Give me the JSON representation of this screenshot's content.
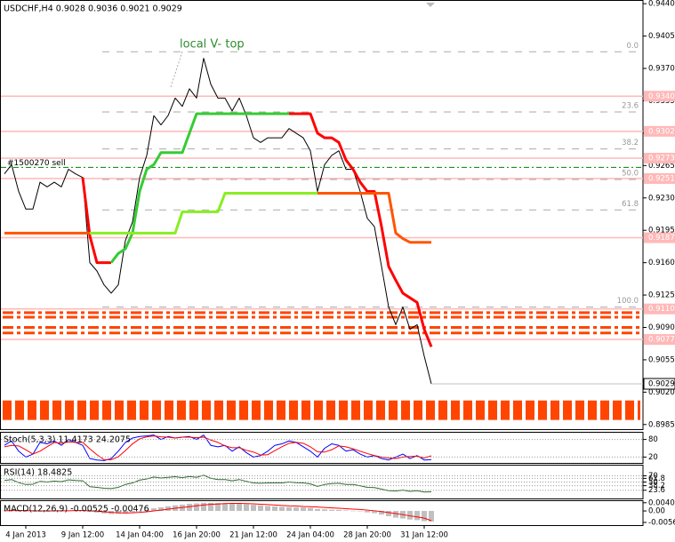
{
  "chart_data": [
    {
      "type": "line",
      "title": "USDCHF,H4  0.9028 0.9036 0.9021 0.9029",
      "categories": [
        null,
        null,
        null,
        "4 Jan 2013",
        null,
        null,
        null,
        null,
        null,
        null,
        null,
        "9 Jan 12:00",
        null,
        null,
        null,
        null,
        null,
        null,
        null,
        "14 Jan 04:00",
        null,
        null,
        null,
        null,
        null,
        null,
        null,
        "16 Jan 20:00",
        null,
        null,
        null,
        null,
        null,
        null,
        null,
        "21 Jan 12:00",
        null,
        null,
        null,
        null,
        null,
        null,
        null,
        "24 Jan 04:00",
        null,
        null,
        null,
        null,
        null,
        null,
        null,
        "28 Jan 20:00",
        null,
        null,
        null,
        null,
        null,
        null,
        null,
        "31 Jan 12:00",
        null
      ],
      "ylim": [
        0.898,
        0.9444
      ],
      "yticks": [
        {
          "value": 0.944,
          "label": "0.9440"
        },
        0.9405,
        {
          "value": 0.937,
          "label": "0.9370"
        },
        0.9335,
        {
          "value": 0.93,
          "label": "0.9300"
        },
        0.9265,
        {
          "value": 0.923,
          "label": "0.9230"
        },
        0.9195,
        {
          "value": 0.916,
          "label": "0.9160"
        },
        0.9125,
        {
          "value": 0.909,
          "label": "0.9090"
        },
        0.9055,
        {
          "value": 0.902,
          "label": "0.9020"
        },
        0.8985
      ],
      "series": [
        {
          "color": "#000000",
          "width": 1,
          "values": [
            0.9256,
            0.9266,
            0.9237,
            0.9218,
            0.9218,
            0.9247,
            0.9242,
            0.9247,
            0.9242,
            0.9261,
            0.9256,
            0.9252,
            0.916,
            0.9151,
            0.9136,
            0.9127,
            0.9136,
            0.9184,
            0.9204,
            0.9252,
            0.9276,
            0.9319,
            0.9309,
            0.9319,
            0.9338,
            0.9329,
            0.9348,
            0.9338,
            0.9381,
            0.9353,
            0.9338,
            0.9338,
            0.9324,
            0.9338,
            0.9319,
            0.9295,
            0.929,
            0.9295,
            0.9295,
            0.9295,
            0.9305,
            0.93,
            0.9295,
            0.9281,
            0.9237,
            0.9266,
            0.9276,
            0.9281,
            0.9261,
            0.9261,
            0.9237,
            0.9208,
            0.9199,
            0.9156,
            0.9112,
            0.9093,
            0.9112,
            0.9088,
            0.9093,
            0.9059,
            0.9029
          ]
        },
        {
          "color": "#ff0000",
          "width": 3,
          "values": [
            null,
            null,
            null,
            null,
            null,
            null,
            null,
            null,
            null,
            null,
            null,
            0.9252,
            0.9189,
            0.916,
            0.916,
            0.916,
            null,
            null,
            null,
            null,
            null,
            null,
            null,
            null,
            null,
            null,
            null,
            null,
            null,
            null,
            null,
            null,
            null,
            null,
            null,
            null,
            null,
            null,
            null,
            null,
            0.9321,
            0.9321,
            0.9321,
            0.9321,
            0.93,
            0.9295,
            0.9295,
            0.929,
            0.9271,
            0.9261,
            0.9247,
            0.9237,
            0.9237,
            0.9199,
            0.9156,
            0.9141,
            0.9127,
            0.9122,
            0.9117,
            0.9088,
            0.9069
          ]
        },
        {
          "color": "#33cc33",
          "width": 3,
          "values": [
            null,
            null,
            null,
            null,
            null,
            null,
            null,
            null,
            null,
            null,
            null,
            null,
            null,
            null,
            null,
            0.916,
            0.917,
            0.9175,
            0.9192,
            0.9237,
            0.9261,
            0.9266,
            0.9279,
            0.9279,
            0.9279,
            0.9279,
            0.93,
            0.9321,
            0.9321,
            0.9321,
            0.9321,
            0.9321,
            0.9321,
            0.9321,
            0.9321,
            0.9321,
            0.9321,
            0.9321,
            0.9321,
            0.9321,
            0.9321,
            null,
            null,
            null,
            null,
            null,
            null,
            null,
            null,
            null,
            null,
            null,
            null,
            null,
            null,
            null,
            null,
            null,
            null,
            null,
            null
          ]
        },
        {
          "color": "#88ee22",
          "width": 3,
          "values": [
            null,
            null,
            null,
            null,
            null,
            null,
            null,
            null,
            null,
            null,
            null,
            null,
            0.9192,
            0.9192,
            0.9192,
            0.9192,
            0.9192,
            0.9192,
            0.9192,
            0.9192,
            0.9192,
            0.9192,
            0.9192,
            0.9192,
            0.9192,
            0.9215,
            0.9215,
            0.9215,
            0.9215,
            0.9215,
            0.9215,
            0.9235,
            0.9235,
            0.9235,
            0.9235,
            0.9235,
            0.9235,
            0.9235,
            0.9235,
            0.9235,
            0.9235,
            0.9235,
            0.9235,
            0.9235,
            0.9235,
            null,
            null,
            null,
            null,
            null,
            null,
            null,
            null,
            null,
            null,
            null,
            null,
            null,
            null,
            null,
            null
          ]
        },
        {
          "color": "#ff5500",
          "width": 3,
          "values": [
            0.9192,
            0.9192,
            0.9192,
            0.9192,
            0.9192,
            0.9192,
            0.9192,
            0.9192,
            0.9192,
            0.9192,
            0.9192,
            0.9192,
            0.9192,
            null,
            null,
            null,
            null,
            null,
            null,
            null,
            null,
            null,
            null,
            null,
            null,
            null,
            null,
            null,
            null,
            null,
            null,
            null,
            null,
            null,
            null,
            null,
            null,
            null,
            null,
            null,
            null,
            null,
            null,
            null,
            0.9235,
            0.9235,
            0.9235,
            0.9235,
            0.9235,
            0.9235,
            0.9235,
            0.9235,
            0.9235,
            0.9235,
            0.9235,
            0.9192,
            0.9186,
            0.9182,
            0.9182,
            0.9182,
            0.9182
          ]
        }
      ],
      "levels": [
        {
          "value": 0.934,
          "label": "0.9340"
        },
        0.9302,
        0.9273,
        0.9251,
        0.9187,
        {
          "value": 0.911,
          "label": "0.9110"
        },
        0.9077
      ],
      "level_color": "#ffb8b8",
      "last": 0.9029,
      "fib_levels": [
        {
          "value": 0.9388,
          "label": "0.0"
        },
        {
          "value": 0.9323,
          "label": "23.6"
        },
        {
          "value": 0.9283,
          "label": "38.2"
        },
        {
          "value": 0.925,
          "label": "50.0"
        },
        {
          "value": 0.9217,
          "label": "61.8"
        },
        {
          "value": 0.9112,
          "label": "100.0"
        }
      ],
      "order": {
        "label": "#1500270 sell",
        "value": 0.9263,
        "color": "#008000"
      },
      "zone_lines": [
        0.9106,
        0.9101,
        0.909,
        0.9084
      ],
      "band": [
        0.9011,
        0.899
      ],
      "zone_color": "#ff4500",
      "annotation": "local V- top"
    },
    {
      "type": "line",
      "title": "Stoch(5,3,3) 11.4173 24.2075",
      "ylim": [
        0,
        100
      ],
      "yticks": [
        80,
        20
      ],
      "series": [
        {
          "color": "#0000ff",
          "width": 1,
          "values": [
            60,
            75,
            40,
            20,
            30,
            70,
            65,
            75,
            60,
            80,
            70,
            60,
            15,
            10,
            8,
            15,
            40,
            70,
            85,
            90,
            92,
            95,
            80,
            90,
            85,
            88,
            90,
            80,
            95,
            60,
            55,
            60,
            40,
            55,
            35,
            20,
            25,
            40,
            60,
            65,
            75,
            70,
            55,
            40,
            20,
            50,
            65,
            60,
            40,
            45,
            30,
            20,
            25,
            15,
            10,
            20,
            30,
            15,
            25,
            10,
            11.4173
          ]
        },
        {
          "color": "#ff0000",
          "width": 1,
          "values": [
            55,
            60,
            58,
            45,
            30,
            40,
            55,
            70,
            67,
            72,
            70,
            70,
            48,
            28,
            11,
            11,
            21,
            42,
            65,
            82,
            89,
            92,
            89,
            88,
            85,
            88,
            88,
            86,
            88,
            78,
            70,
            58,
            52,
            52,
            43,
            37,
            27,
            28,
            42,
            55,
            67,
            70,
            67,
            55,
            38,
            37,
            45,
            58,
            55,
            48,
            40,
            32,
            25,
            20,
            17,
            15,
            20,
            22,
            23,
            17,
            24.2075
          ]
        }
      ]
    },
    {
      "type": "line",
      "title": "RSI(14) 18.4825",
      "ylim": [
        0,
        100
      ],
      "yticks": [
        70,
        61.8,
        50,
        38.2,
        23.6
      ],
      "series": [
        {
          "color": "#2e6b2e",
          "width": 1,
          "values": [
            55,
            58,
            48,
            42,
            43,
            52,
            50,
            53,
            51,
            57,
            55,
            54,
            35,
            33,
            30,
            29,
            33,
            42,
            47,
            56,
            60,
            66,
            63,
            65,
            67,
            64,
            68,
            65,
            72,
            62,
            58,
            58,
            54,
            58,
            52,
            47,
            46,
            47,
            47,
            47,
            50,
            48,
            47,
            44,
            36,
            42,
            45,
            46,
            42,
            42,
            38,
            33,
            32,
            27,
            22,
            21,
            24,
            20,
            22,
            18,
            18.4825
          ]
        }
      ]
    },
    {
      "type": "bar",
      "title": "MACD(12,26,9) -0.00525 -0.00476",
      "ylim": [
        -0.0065,
        0.0048
      ],
      "yticks": [
        0.00402,
        {
          "value": 0,
          "label": "0.00"
        },
        -0.00561
      ],
      "color": "#c0c0c0",
      "values": [
        0.0002,
        0.0003,
        0.0002,
        0.0,
        -0.0002,
        -0.0001,
        0.0,
        0.0001,
        0.0001,
        0.0002,
        0.0002,
        0.0002,
        -0.0004,
        -0.0008,
        -0.0012,
        -0.0015,
        -0.0014,
        -0.001,
        -0.0006,
        0.0,
        0.0006,
        0.0013,
        0.0018,
        0.0023,
        0.0028,
        0.0031,
        0.0035,
        0.0037,
        0.004,
        0.004,
        0.0039,
        0.0038,
        0.0036,
        0.0035,
        0.0033,
        0.003,
        0.0027,
        0.0024,
        0.0022,
        0.002,
        0.0019,
        0.0018,
        0.0017,
        0.0015,
        0.001,
        0.0008,
        0.0006,
        0.0005,
        0.0003,
        0.0001,
        -0.0002,
        -0.0007,
        -0.0011,
        -0.0018,
        -0.0026,
        -0.0033,
        -0.0037,
        -0.0042,
        -0.0045,
        -0.005,
        -0.00525
      ],
      "signal": {
        "color": "#ff0000",
        "values": [
          0.0001,
          0.0002,
          0.0002,
          0.0002,
          0.0001,
          0.0,
          0.0,
          0.0,
          0.0001,
          0.0001,
          0.0002,
          0.0002,
          0.0001,
          -0.0001,
          -0.0004,
          -0.0007,
          -0.0009,
          -0.001,
          -0.0009,
          -0.0007,
          -0.0004,
          0.0,
          0.0004,
          0.0009,
          0.0013,
          0.0017,
          0.0021,
          0.0025,
          0.0029,
          0.0032,
          0.0034,
          0.0036,
          0.0037,
          0.0037,
          0.0036,
          0.0035,
          0.0033,
          0.0031,
          0.0029,
          0.0027,
          0.0025,
          0.0024,
          0.0022,
          0.0021,
          0.0019,
          0.0017,
          0.0015,
          0.0013,
          0.0011,
          0.0009,
          0.0007,
          0.0004,
          0.0001,
          -0.0003,
          -0.0008,
          -0.0013,
          -0.0018,
          -0.0024,
          -0.0029,
          -0.0035,
          -0.00476
        ]
      }
    }
  ]
}
